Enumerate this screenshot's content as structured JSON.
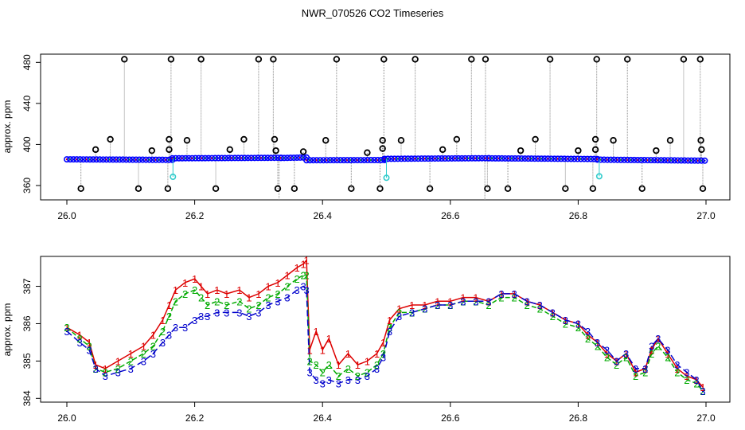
{
  "figure": {
    "title": "NWR_070526  CO2 Timeseries"
  },
  "colors": {
    "background": "#ffffff",
    "axis": "#000000",
    "raw_line": "#888888",
    "mean_marker": "#0000ff",
    "flag_marker": "#000000",
    "cal_marker": "#33cccc",
    "level1": "#dd0000",
    "level2": "#00aa00",
    "level3": "#0000cc"
  },
  "chart_data": [
    {
      "type": "scatter",
      "title": "",
      "xlabel": "",
      "ylabel": "approx. ppm",
      "xlim": [
        26.0,
        27.0
      ],
      "ylim": [
        346,
        488
      ],
      "x_ticks": [
        26.0,
        26.2,
        26.4,
        26.6,
        26.8,
        27.0
      ],
      "x_tick_labels": [
        "26.0",
        "26.2",
        "26.4",
        "26.6",
        "26.8",
        "27.0"
      ],
      "y_ticks": [
        360,
        400,
        440,
        480
      ],
      "y_tick_labels": [
        "360",
        "400",
        "440",
        "480"
      ],
      "grid": false,
      "legend": "none",
      "baseline_segments": [
        {
          "x0": 26.0,
          "x1": 26.165,
          "y0": 385.5,
          "y1": 385.0
        },
        {
          "x0": 26.165,
          "x1": 26.335,
          "y0": 386.5,
          "y1": 387.0
        },
        {
          "x0": 26.335,
          "x1": 26.375,
          "y0": 386.8,
          "y1": 387.3
        },
        {
          "x0": 26.375,
          "x1": 26.497,
          "y0": 384.6,
          "y1": 384.8
        },
        {
          "x0": 26.497,
          "x1": 26.66,
          "y0": 386.0,
          "y1": 386.6
        },
        {
          "x0": 26.66,
          "x1": 26.83,
          "y0": 386.5,
          "y1": 385.8
        },
        {
          "x0": 26.83,
          "x1": 26.998,
          "y0": 385.2,
          "y1": 384.2
        }
      ],
      "spikes_high": [
        26.09,
        26.163,
        26.21,
        26.3,
        26.323,
        26.422,
        26.496,
        26.545,
        26.633,
        26.655,
        26.756,
        26.829,
        26.877,
        26.965,
        26.991
      ],
      "spikes_mid": [
        [
          26.045,
          395
        ],
        [
          26.068,
          405
        ],
        [
          26.133,
          394
        ],
        [
          26.16,
          405
        ],
        [
          26.16,
          395
        ],
        [
          26.188,
          404
        ],
        [
          26.255,
          395
        ],
        [
          26.277,
          405
        ],
        [
          26.325,
          405
        ],
        [
          26.327,
          394
        ],
        [
          26.37,
          393
        ],
        [
          26.405,
          404
        ],
        [
          26.47,
          392
        ],
        [
          26.494,
          396
        ],
        [
          26.494,
          404
        ],
        [
          26.523,
          404
        ],
        [
          26.588,
          395
        ],
        [
          26.61,
          405
        ],
        [
          26.71,
          394
        ],
        [
          26.733,
          405
        ],
        [
          26.8,
          394
        ],
        [
          26.827,
          405
        ],
        [
          26.827,
          395
        ],
        [
          26.855,
          404
        ],
        [
          26.922,
          394
        ],
        [
          26.944,
          404
        ],
        [
          26.992,
          404
        ],
        [
          26.993,
          395
        ]
      ],
      "spikes_low": [
        26.022,
        26.112,
        26.158,
        26.233,
        26.33,
        26.356,
        26.445,
        26.49,
        26.568,
        26.658,
        26.69,
        26.78,
        26.823,
        26.9,
        26.995
      ],
      "cal_points": [
        [
          26.166,
          368.5
        ],
        [
          26.5,
          367.5
        ],
        [
          26.833,
          369
        ]
      ],
      "deep_drops": [
        26.332,
        26.654
      ]
    },
    {
      "type": "line",
      "title": "",
      "xlabel": "",
      "ylabel": "approx. ppm",
      "xlim": [
        26.0,
        27.0
      ],
      "ylim": [
        383.9,
        387.8
      ],
      "x_ticks": [
        26.0,
        26.2,
        26.4,
        26.6,
        26.8,
        27.0
      ],
      "x_tick_labels": [
        "26.0",
        "26.2",
        "26.4",
        "26.6",
        "26.8",
        "27.0"
      ],
      "y_ticks": [
        384,
        385,
        386,
        387
      ],
      "y_tick_labels": [
        "384",
        "385",
        "386",
        "387"
      ],
      "grid": false,
      "legend": "none",
      "series": [
        {
          "marker": "1",
          "x": [
            26.0,
            26.02,
            26.035,
            26.045,
            26.06,
            26.08,
            26.1,
            26.12,
            26.135,
            26.15,
            26.16,
            26.17,
            26.185,
            26.2,
            26.21,
            26.22,
            26.235,
            26.25,
            26.27,
            26.285,
            26.3,
            26.315,
            26.33,
            26.345,
            26.36,
            26.37,
            26.375,
            26.38,
            26.39,
            26.4,
            26.41,
            26.425,
            26.44,
            26.455,
            26.47,
            26.485,
            26.495,
            26.505,
            26.52,
            26.54,
            26.56,
            26.58,
            26.6,
            26.62,
            26.64,
            26.66,
            26.68,
            26.7,
            26.72,
            26.74,
            26.76,
            26.78,
            26.8,
            26.815,
            26.83,
            26.845,
            26.86,
            26.875,
            26.89,
            26.905,
            26.915,
            26.925,
            26.94,
            26.955,
            26.97,
            26.985,
            26.995
          ],
          "y": [
            385.9,
            385.7,
            385.5,
            384.9,
            384.8,
            385.0,
            385.2,
            385.4,
            385.7,
            386.1,
            386.5,
            386.9,
            387.1,
            387.2,
            387.0,
            386.8,
            386.9,
            386.8,
            386.9,
            386.7,
            386.8,
            387.0,
            387.1,
            387.3,
            387.5,
            387.6,
            387.7,
            385.3,
            385.8,
            385.3,
            385.6,
            384.9,
            385.2,
            384.9,
            385.0,
            385.2,
            385.5,
            386.1,
            386.4,
            386.5,
            386.5,
            386.6,
            386.6,
            386.7,
            386.7,
            386.6,
            386.8,
            386.8,
            386.6,
            386.5,
            386.3,
            386.1,
            386.0,
            385.7,
            385.5,
            385.2,
            385.0,
            385.2,
            384.7,
            384.8,
            385.3,
            385.6,
            385.2,
            384.8,
            384.6,
            384.5,
            384.3
          ]
        },
        {
          "marker": "2",
          "x": [
            26.0,
            26.02,
            26.035,
            26.045,
            26.06,
            26.08,
            26.1,
            26.12,
            26.135,
            26.15,
            26.16,
            26.17,
            26.185,
            26.2,
            26.21,
            26.22,
            26.235,
            26.25,
            26.27,
            26.285,
            26.3,
            26.315,
            26.33,
            26.345,
            26.36,
            26.37,
            26.375,
            26.38,
            26.39,
            26.4,
            26.41,
            26.425,
            26.44,
            26.455,
            26.47,
            26.485,
            26.495,
            26.505,
            26.52,
            26.54,
            26.56,
            26.58,
            26.6,
            26.62,
            26.64,
            26.66,
            26.68,
            26.7,
            26.72,
            26.74,
            26.76,
            26.78,
            26.8,
            26.815,
            26.83,
            26.845,
            26.86,
            26.875,
            26.89,
            26.905,
            26.915,
            26.925,
            26.94,
            26.955,
            26.97,
            26.985,
            26.995
          ],
          "y": [
            385.9,
            385.6,
            385.4,
            384.8,
            384.7,
            384.8,
            385.0,
            385.2,
            385.4,
            385.8,
            386.2,
            386.6,
            386.8,
            386.9,
            386.7,
            386.5,
            386.6,
            386.5,
            386.6,
            386.4,
            386.5,
            386.7,
            386.8,
            387.0,
            387.2,
            387.3,
            387.3,
            385.0,
            384.9,
            384.7,
            384.9,
            384.6,
            384.8,
            384.6,
            384.7,
            384.9,
            385.2,
            385.9,
            386.3,
            386.3,
            386.4,
            386.5,
            386.5,
            386.6,
            386.6,
            386.5,
            386.7,
            386.7,
            386.5,
            386.4,
            386.2,
            386.0,
            385.9,
            385.6,
            385.4,
            385.1,
            384.9,
            385.1,
            384.6,
            384.7,
            385.2,
            385.4,
            385.1,
            384.7,
            384.5,
            384.4,
            384.2
          ]
        },
        {
          "marker": "3",
          "x": [
            26.0,
            26.02,
            26.035,
            26.045,
            26.06,
            26.08,
            26.1,
            26.12,
            26.135,
            26.15,
            26.16,
            26.17,
            26.185,
            26.2,
            26.21,
            26.22,
            26.235,
            26.25,
            26.27,
            26.285,
            26.3,
            26.315,
            26.33,
            26.345,
            26.36,
            26.37,
            26.375,
            26.38,
            26.39,
            26.4,
            26.41,
            26.425,
            26.44,
            26.455,
            26.47,
            26.485,
            26.495,
            26.505,
            26.52,
            26.54,
            26.56,
            26.58,
            26.6,
            26.62,
            26.64,
            26.66,
            26.68,
            26.7,
            26.72,
            26.74,
            26.76,
            26.78,
            26.8,
            26.815,
            26.83,
            26.845,
            26.86,
            26.875,
            26.89,
            26.905,
            26.915,
            26.925,
            26.94,
            26.955,
            26.97,
            26.985,
            26.995
          ],
          "y": [
            385.8,
            385.5,
            385.3,
            384.8,
            384.6,
            384.7,
            384.8,
            385.0,
            385.2,
            385.5,
            385.7,
            385.9,
            385.9,
            386.1,
            386.2,
            386.2,
            386.3,
            386.3,
            386.3,
            386.2,
            386.3,
            386.5,
            386.6,
            386.7,
            386.9,
            387.0,
            386.9,
            384.7,
            384.5,
            384.4,
            384.5,
            384.4,
            384.5,
            384.5,
            384.6,
            384.8,
            385.1,
            385.8,
            386.2,
            386.3,
            386.4,
            386.5,
            386.5,
            386.6,
            386.6,
            386.6,
            386.8,
            386.8,
            386.6,
            386.5,
            386.3,
            386.1,
            386.0,
            385.8,
            385.5,
            385.3,
            385.0,
            385.2,
            384.8,
            384.8,
            385.4,
            385.6,
            385.3,
            384.9,
            384.7,
            384.5,
            384.2
          ]
        }
      ]
    }
  ]
}
